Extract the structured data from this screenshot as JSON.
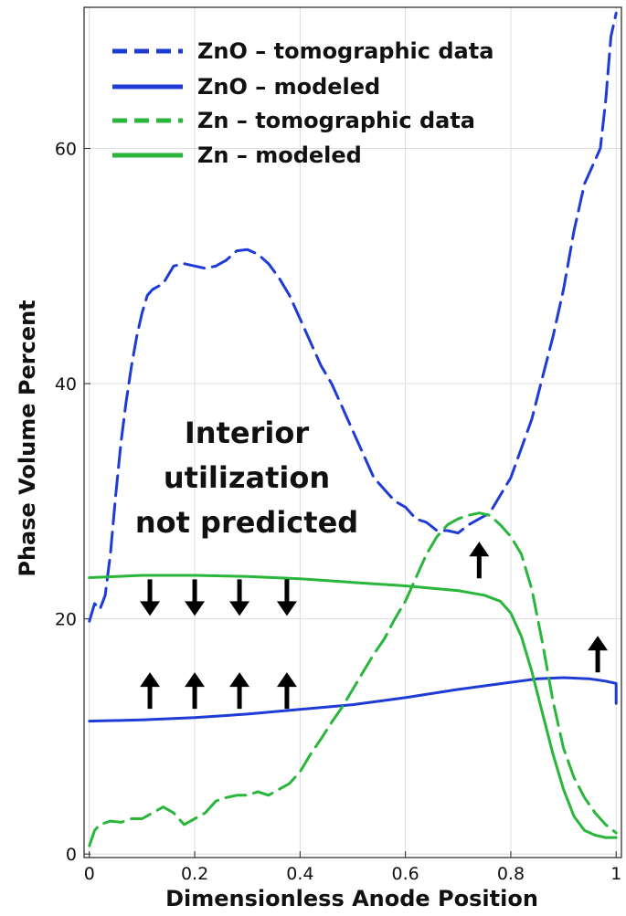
{
  "chart_data": {
    "type": "line",
    "title": "",
    "xlabel": "Dimensionless Anode Position",
    "ylabel": "Phase Volume Percent",
    "xlim": [
      -0.01,
      1.01
    ],
    "ylim": [
      -0.3,
      72
    ],
    "xticks": [
      0,
      0.2,
      0.4,
      0.6,
      0.8,
      1
    ],
    "xtick_labels": [
      "0",
      "0.2",
      "0.4",
      "0.6",
      "0.8",
      "1"
    ],
    "yticks": [
      0,
      20,
      40,
      60
    ],
    "ytick_labels": [
      "0",
      "20",
      "40",
      "60"
    ],
    "grid": true,
    "legend_placement": "top-left",
    "series": [
      {
        "name": "ZnO – tomographic data",
        "color": "#1f3bd6",
        "style": "dashed",
        "x": [
          0,
          0.01,
          0.02,
          0.03,
          0.04,
          0.05,
          0.06,
          0.07,
          0.08,
          0.09,
          0.1,
          0.11,
          0.12,
          0.14,
          0.16,
          0.18,
          0.2,
          0.22,
          0.24,
          0.26,
          0.28,
          0.3,
          0.32,
          0.34,
          0.36,
          0.38,
          0.4,
          0.42,
          0.44,
          0.46,
          0.48,
          0.5,
          0.52,
          0.54,
          0.56,
          0.58,
          0.6,
          0.62,
          0.64,
          0.66,
          0.68,
          0.7,
          0.72,
          0.74,
          0.76,
          0.78,
          0.8,
          0.82,
          0.84,
          0.86,
          0.88,
          0.9,
          0.92,
          0.94,
          0.96,
          0.97,
          0.98,
          0.99,
          1.0
        ],
        "y": [
          19.8,
          21.3,
          20.8,
          22.0,
          25.5,
          30.5,
          35.0,
          38.5,
          41.5,
          44.0,
          46.0,
          47.5,
          48.0,
          48.5,
          50.0,
          50.2,
          50.0,
          49.8,
          50.0,
          50.5,
          51.3,
          51.4,
          51.0,
          50.2,
          49.0,
          47.5,
          45.5,
          43.5,
          41.5,
          40.0,
          38.0,
          36.0,
          34.0,
          32.0,
          31.0,
          30.0,
          29.5,
          28.5,
          28.2,
          27.5,
          27.5,
          27.3,
          28.0,
          28.5,
          29.0,
          30.5,
          32.0,
          34.5,
          37.0,
          40.5,
          44.0,
          48.0,
          53.0,
          57.0,
          59.0,
          60.0,
          64.0,
          69.5,
          71.5
        ]
      },
      {
        "name": "ZnO – modeled",
        "color": "#1f3bd6",
        "style": "solid",
        "x": [
          0,
          0.1,
          0.2,
          0.3,
          0.4,
          0.5,
          0.6,
          0.7,
          0.8,
          0.85,
          0.9,
          0.95,
          0.98,
          1.0,
          1.0
        ],
        "y": [
          11.3,
          11.4,
          11.6,
          11.9,
          12.3,
          12.7,
          13.3,
          14.0,
          14.6,
          14.9,
          15.0,
          14.9,
          14.7,
          14.5,
          12.8
        ]
      },
      {
        "name": "Zn – tomographic data",
        "color": "#29b63a",
        "style": "dashed",
        "x": [
          0,
          0.01,
          0.02,
          0.04,
          0.06,
          0.08,
          0.1,
          0.12,
          0.14,
          0.16,
          0.18,
          0.2,
          0.22,
          0.24,
          0.26,
          0.28,
          0.3,
          0.32,
          0.34,
          0.36,
          0.38,
          0.4,
          0.42,
          0.44,
          0.46,
          0.48,
          0.5,
          0.52,
          0.54,
          0.56,
          0.58,
          0.6,
          0.62,
          0.64,
          0.66,
          0.68,
          0.7,
          0.72,
          0.74,
          0.76,
          0.78,
          0.8,
          0.82,
          0.84,
          0.86,
          0.88,
          0.9,
          0.92,
          0.94,
          0.96,
          0.98,
          1.0
        ],
        "y": [
          0.7,
          2.0,
          2.5,
          2.8,
          2.7,
          3.0,
          3.0,
          3.5,
          4.0,
          3.5,
          2.5,
          3.0,
          3.5,
          4.5,
          4.8,
          5.0,
          5.0,
          5.3,
          5.0,
          5.5,
          6.0,
          7.0,
          8.5,
          9.8,
          11.2,
          12.5,
          14.0,
          15.5,
          17.0,
          18.3,
          20.0,
          21.5,
          23.5,
          25.5,
          27.0,
          28.0,
          28.5,
          28.8,
          29.0,
          28.8,
          28.0,
          27.0,
          25.5,
          22.5,
          18.0,
          13.0,
          9.0,
          6.5,
          4.8,
          3.5,
          2.5,
          1.8
        ]
      },
      {
        "name": "Zn – modeled",
        "color": "#29b63a",
        "style": "solid",
        "x": [
          0,
          0.1,
          0.2,
          0.3,
          0.4,
          0.5,
          0.6,
          0.7,
          0.75,
          0.78,
          0.8,
          0.82,
          0.84,
          0.86,
          0.88,
          0.9,
          0.92,
          0.94,
          0.96,
          0.98,
          1.0
        ],
        "y": [
          23.5,
          23.7,
          23.7,
          23.6,
          23.4,
          23.1,
          22.8,
          22.4,
          22.0,
          21.5,
          20.5,
          18.5,
          15.5,
          12.0,
          8.5,
          5.5,
          3.2,
          2.0,
          1.6,
          1.4,
          1.4
        ]
      }
    ],
    "annotations": {
      "text_lines": [
        "Interior",
        "utilization",
        "not predicted"
      ],
      "arrows": [
        {
          "x": 0.115,
          "y": 21.8,
          "direction": "down"
        },
        {
          "x": 0.2,
          "y": 21.8,
          "direction": "down"
        },
        {
          "x": 0.285,
          "y": 21.8,
          "direction": "down"
        },
        {
          "x": 0.375,
          "y": 21.8,
          "direction": "down"
        },
        {
          "x": 0.115,
          "y": 13.9,
          "direction": "up"
        },
        {
          "x": 0.2,
          "y": 13.9,
          "direction": "up"
        },
        {
          "x": 0.285,
          "y": 13.9,
          "direction": "up"
        },
        {
          "x": 0.375,
          "y": 13.9,
          "direction": "up"
        },
        {
          "x": 0.74,
          "y": 25.0,
          "direction": "up"
        },
        {
          "x": 0.965,
          "y": 17.0,
          "direction": "up"
        }
      ]
    }
  }
}
